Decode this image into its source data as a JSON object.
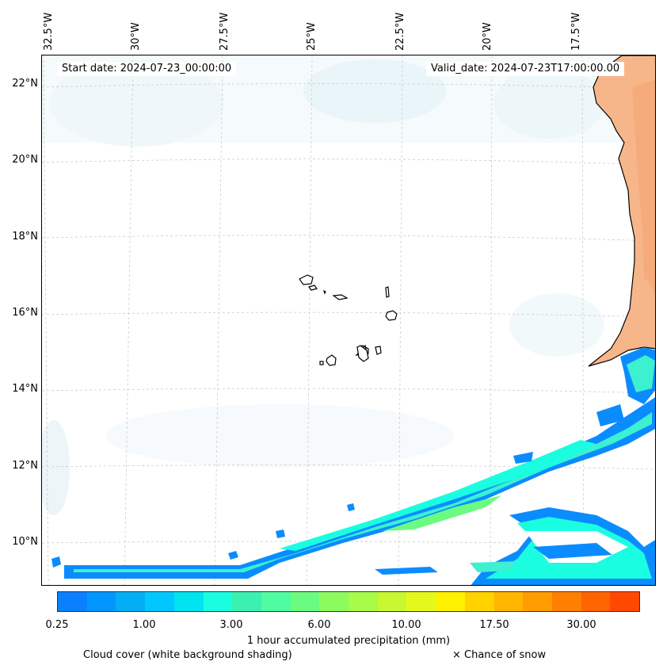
{
  "map": {
    "start_date": "Start date: 2024-07-23_00:00:00",
    "valid_date": "Valid_date: 2024-07-23T17:00:00.00",
    "longitude_labels": [
      "32.5°W",
      "30°W",
      "27.5°W",
      "25°W",
      "22.5°W",
      "20°W",
      "17.5°W"
    ],
    "latitude_labels": [
      "22°N",
      "20°N",
      "18°N",
      "16°N",
      "14°N",
      "12°N",
      "10°N"
    ]
  },
  "colorbar": {
    "ticks": [
      "0.25",
      "1.00",
      "3.00",
      "6.00",
      "10.00",
      "17.50",
      "30.00"
    ],
    "colors": [
      "#0a80ff",
      "#0496ff",
      "#04aef5",
      "#00c8ff",
      "#00e3f0",
      "#1afde0",
      "#3cf0b0",
      "#50fca0",
      "#6bfb80",
      "#8cfb60",
      "#a8fb48",
      "#c8f830",
      "#e4f81e",
      "#fff200",
      "#ffd200",
      "#ffb600",
      "#ff9c00",
      "#ff7f00",
      "#ff6400",
      "#ff4800"
    ],
    "title": "1 hour accumulated precipitation (mm)"
  },
  "legend": {
    "cloud_cover": "Cloud cover (white background shading)",
    "snow": "× Chance of snow"
  }
}
